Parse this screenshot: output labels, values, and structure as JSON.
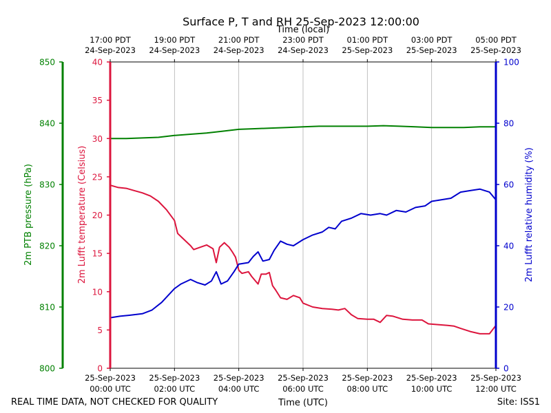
{
  "chart_data": {
    "type": "line",
    "title": "Surface P, T and RH 25-Sep-2023 12:00:00",
    "top_axis_label": "Time (local)",
    "xlabel": "Time (UTC)",
    "footer_left": "REAL TIME DATA, NOT CHECKED FOR QUALITY",
    "footer_right": "Site: ISS1",
    "grid": "vertical",
    "x_range_hours": [
      0,
      12
    ],
    "x_ticks_hours": [
      0,
      2,
      4,
      6,
      8,
      10,
      12
    ],
    "bottom_ticks": [
      {
        "date": "25-Sep-2023",
        "time": "00:00 UTC"
      },
      {
        "date": "25-Sep-2023",
        "time": "02:00 UTC"
      },
      {
        "date": "25-Sep-2023",
        "time": "04:00 UTC"
      },
      {
        "date": "25-Sep-2023",
        "time": "06:00 UTC"
      },
      {
        "date": "25-Sep-2023",
        "time": "08:00 UTC"
      },
      {
        "date": "25-Sep-2023",
        "time": "10:00 UTC"
      },
      {
        "date": "25-Sep-2023",
        "time": "12:00 UTC"
      }
    ],
    "top_ticks": [
      {
        "time": "17:00 PDT",
        "date": "24-Sep-2023"
      },
      {
        "time": "19:00 PDT",
        "date": "24-Sep-2023"
      },
      {
        "time": "21:00 PDT",
        "date": "24-Sep-2023"
      },
      {
        "time": "23:00 PDT",
        "date": "24-Sep-2023"
      },
      {
        "time": "01:00 PDT",
        "date": "25-Sep-2023"
      },
      {
        "time": "03:00 PDT",
        "date": "25-Sep-2023"
      },
      {
        "time": "05:00 PDT",
        "date": "25-Sep-2023"
      }
    ],
    "axes": {
      "pressure": {
        "label": "2m PTB pressure (hPa)",
        "range": [
          800,
          850
        ],
        "ticks": [
          "800",
          "810",
          "820",
          "830",
          "840",
          "850"
        ],
        "color": "#008000"
      },
      "temperature": {
        "label": "2m Lufft temperature (Celsius)",
        "range": [
          0,
          40
        ],
        "ticks": [
          "0",
          "5",
          "10",
          "15",
          "20",
          "25",
          "30",
          "35",
          "40"
        ],
        "color": "#dc143c"
      },
      "humidity": {
        "label": "2m Lufft relative humidity (%)",
        "range": [
          0,
          100
        ],
        "ticks": [
          "0",
          "20",
          "40",
          "60",
          "80",
          "100"
        ],
        "color": "#0000cd"
      }
    },
    "series": [
      {
        "axis": "pressure",
        "color": "#008000",
        "points": [
          [
            0,
            837.5
          ],
          [
            0.5,
            837.5
          ],
          [
            1,
            837.6
          ],
          [
            1.5,
            837.7
          ],
          [
            2,
            838.0
          ],
          [
            2.5,
            838.2
          ],
          [
            3,
            838.4
          ],
          [
            3.5,
            838.7
          ],
          [
            4,
            839.0
          ],
          [
            4.5,
            839.1
          ],
          [
            5,
            839.2
          ],
          [
            5.5,
            839.3
          ],
          [
            6,
            839.4
          ],
          [
            6.5,
            839.5
          ],
          [
            7,
            839.5
          ],
          [
            7.5,
            839.5
          ],
          [
            8,
            839.5
          ],
          [
            8.5,
            839.6
          ],
          [
            9,
            839.5
          ],
          [
            9.5,
            839.4
          ],
          [
            10,
            839.3
          ],
          [
            10.5,
            839.3
          ],
          [
            11,
            839.3
          ],
          [
            11.5,
            839.4
          ],
          [
            12,
            839.4
          ]
        ]
      },
      {
        "axis": "temperature",
        "color": "#dc143c",
        "points": [
          [
            0,
            23.9
          ],
          [
            0.25,
            23.6
          ],
          [
            0.5,
            23.5
          ],
          [
            0.75,
            23.2
          ],
          [
            1,
            22.9
          ],
          [
            1.25,
            22.5
          ],
          [
            1.5,
            21.8
          ],
          [
            1.75,
            20.7
          ],
          [
            2,
            19.3
          ],
          [
            2.1,
            17.6
          ],
          [
            2.25,
            17.0
          ],
          [
            2.5,
            16.0
          ],
          [
            2.6,
            15.5
          ],
          [
            2.8,
            15.8
          ],
          [
            3,
            16.1
          ],
          [
            3.2,
            15.6
          ],
          [
            3.3,
            13.8
          ],
          [
            3.4,
            15.8
          ],
          [
            3.55,
            16.4
          ],
          [
            3.7,
            15.8
          ],
          [
            3.8,
            15.2
          ],
          [
            3.9,
            14.5
          ],
          [
            4,
            12.8
          ],
          [
            4.1,
            12.4
          ],
          [
            4.3,
            12.6
          ],
          [
            4.4,
            12.0
          ],
          [
            4.5,
            11.5
          ],
          [
            4.6,
            11.0
          ],
          [
            4.7,
            12.3
          ],
          [
            4.85,
            12.3
          ],
          [
            4.95,
            12.5
          ],
          [
            5.05,
            10.8
          ],
          [
            5.15,
            10.2
          ],
          [
            5.3,
            9.2
          ],
          [
            5.5,
            9.0
          ],
          [
            5.7,
            9.5
          ],
          [
            5.9,
            9.2
          ],
          [
            6,
            8.5
          ],
          [
            6.3,
            8.0
          ],
          [
            6.6,
            7.8
          ],
          [
            6.9,
            7.7
          ],
          [
            7.1,
            7.6
          ],
          [
            7.3,
            7.8
          ],
          [
            7.5,
            7.0
          ],
          [
            7.7,
            6.5
          ],
          [
            8,
            6.4
          ],
          [
            8.2,
            6.4
          ],
          [
            8.4,
            6.0
          ],
          [
            8.6,
            6.9
          ],
          [
            8.8,
            6.8
          ],
          [
            9.1,
            6.4
          ],
          [
            9.4,
            6.3
          ],
          [
            9.7,
            6.3
          ],
          [
            9.9,
            5.8
          ],
          [
            10.2,
            5.7
          ],
          [
            10.5,
            5.6
          ],
          [
            10.7,
            5.5
          ],
          [
            10.9,
            5.2
          ],
          [
            11.2,
            4.8
          ],
          [
            11.5,
            4.5
          ],
          [
            11.8,
            4.5
          ],
          [
            12,
            5.6
          ]
        ]
      },
      {
        "axis": "humidity",
        "color": "#0000cd",
        "points": [
          [
            0,
            16.5
          ],
          [
            0.3,
            17.0
          ],
          [
            0.6,
            17.3
          ],
          [
            1,
            17.8
          ],
          [
            1.3,
            19.0
          ],
          [
            1.6,
            21.5
          ],
          [
            2,
            26.0
          ],
          [
            2.2,
            27.5
          ],
          [
            2.5,
            29.0
          ],
          [
            2.7,
            28.0
          ],
          [
            2.95,
            27.2
          ],
          [
            3.15,
            28.5
          ],
          [
            3.3,
            31.5
          ],
          [
            3.45,
            27.5
          ],
          [
            3.65,
            28.5
          ],
          [
            3.85,
            31.5
          ],
          [
            4,
            34.0
          ],
          [
            4.3,
            34.5
          ],
          [
            4.45,
            36.5
          ],
          [
            4.6,
            38.0
          ],
          [
            4.75,
            35.0
          ],
          [
            4.95,
            35.5
          ],
          [
            5.1,
            38.5
          ],
          [
            5.3,
            41.5
          ],
          [
            5.5,
            40.5
          ],
          [
            5.7,
            40.0
          ],
          [
            6,
            42.0
          ],
          [
            6.3,
            43.5
          ],
          [
            6.6,
            44.5
          ],
          [
            6.8,
            46.0
          ],
          [
            7,
            45.5
          ],
          [
            7.2,
            48.0
          ],
          [
            7.5,
            49.0
          ],
          [
            7.8,
            50.5
          ],
          [
            8.1,
            50.0
          ],
          [
            8.4,
            50.5
          ],
          [
            8.6,
            50.0
          ],
          [
            8.9,
            51.5
          ],
          [
            9.2,
            51.0
          ],
          [
            9.5,
            52.5
          ],
          [
            9.8,
            53.0
          ],
          [
            10,
            54.5
          ],
          [
            10.3,
            55.0
          ],
          [
            10.6,
            55.5
          ],
          [
            10.9,
            57.5
          ],
          [
            11.2,
            58.0
          ],
          [
            11.5,
            58.5
          ],
          [
            11.8,
            57.5
          ],
          [
            12,
            55.0
          ]
        ]
      }
    ]
  }
}
